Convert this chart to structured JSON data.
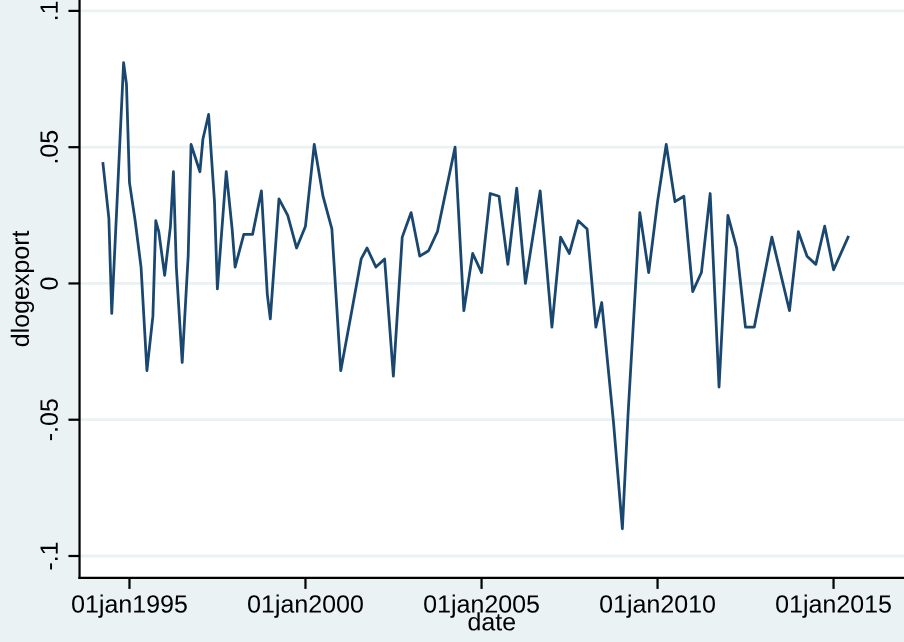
{
  "chart_data": {
    "type": "line",
    "xlabel": "date",
    "ylabel": "dlogexport",
    "x": [
      "1994-04",
      "1994-06",
      "1994-07",
      "1994-09",
      "1994-11",
      "1994-12",
      "1995-01",
      "1995-03",
      "1995-05",
      "1995-07",
      "1995-09",
      "1995-10",
      "1995-11",
      "1996-01",
      "1996-03",
      "1996-04",
      "1996-05",
      "1996-07",
      "1996-09",
      "1996-10",
      "1997-01",
      "1997-02",
      "1997-04",
      "1997-06",
      "1997-07",
      "1997-10",
      "1997-12",
      "1998-01",
      "1998-04",
      "1998-07",
      "1998-10",
      "1998-12",
      "1999-01",
      "1999-04",
      "1999-07",
      "1999-10",
      "2000-01",
      "2000-04",
      "2000-07",
      "2000-10",
      "2001-01",
      "2001-05",
      "2001-08",
      "2001-10",
      "2002-01",
      "2002-04",
      "2002-07",
      "2002-10",
      "2003-01",
      "2003-04",
      "2003-07",
      "2003-10",
      "2004-04",
      "2004-07",
      "2004-10",
      "2005-01",
      "2005-04",
      "2005-07",
      "2005-10",
      "2006-01",
      "2006-04",
      "2006-09",
      "2007-01",
      "2007-04",
      "2007-07",
      "2007-10",
      "2008-01",
      "2008-04",
      "2008-06",
      "2008-10",
      "2009-01",
      "2009-03",
      "2009-07",
      "2009-10",
      "2010-01",
      "2010-04",
      "2010-07",
      "2010-10",
      "2011-01",
      "2011-04",
      "2011-07",
      "2011-10",
      "2012-01",
      "2012-04",
      "2012-07",
      "2012-10",
      "2013-04",
      "2013-10",
      "2014-01",
      "2014-04",
      "2014-07",
      "2014-10",
      "2015-01",
      "2015-06"
    ],
    "series": [
      {
        "color": "#1a476f",
        "values": [
          0.044,
          0.024,
          -0.011,
          0.035,
          0.081,
          0.073,
          0.037,
          0.023,
          0.006,
          -0.032,
          -0.012,
          0.023,
          0.019,
          0.003,
          0.021,
          0.041,
          0.006,
          -0.029,
          0.01,
          0.051,
          0.041,
          0.053,
          0.062,
          0.03,
          -0.002,
          0.041,
          0.02,
          0.006,
          0.018,
          0.018,
          0.034,
          -0.004,
          -0.013,
          0.031,
          0.025,
          0.013,
          0.021,
          0.051,
          0.032,
          0.02,
          -0.032,
          -0.009,
          0.009,
          0.013,
          0.006,
          0.009,
          -0.034,
          0.017,
          0.026,
          0.01,
          0.012,
          0.019,
          0.05,
          -0.01,
          0.011,
          0.004,
          0.033,
          0.032,
          0.007,
          0.035,
          0.0,
          0.034,
          -0.016,
          0.017,
          0.011,
          0.023,
          0.02,
          -0.016,
          -0.007,
          -0.051,
          -0.09,
          -0.048,
          0.026,
          0.004,
          0.03,
          0.051,
          0.03,
          0.032,
          -0.003,
          0.004,
          0.033,
          -0.038,
          0.025,
          0.013,
          -0.016,
          -0.016,
          0.017,
          -0.01,
          0.019,
          0.01,
          0.007,
          0.021,
          0.005,
          0.017
        ]
      }
    ],
    "xlim": [
      "1993-08",
      "2017-01"
    ],
    "xticks": [
      {
        "value": "1995-01-01",
        "label": "01jan1995"
      },
      {
        "value": "2000-01-01",
        "label": "01jan2000"
      },
      {
        "value": "2005-01-01",
        "label": "01jan2005"
      },
      {
        "value": "2010-01-01",
        "label": "01jan2010"
      },
      {
        "value": "2015-01-01",
        "label": "01jan2015"
      }
    ],
    "ylim": [
      -0.108,
      0.104
    ],
    "yticks": [
      {
        "value": -0.1,
        "label": "-.1"
      },
      {
        "value": -0.05,
        "label": "-.05"
      },
      {
        "value": 0,
        "label": "0"
      },
      {
        "value": 0.05,
        "label": ".05"
      },
      {
        "value": 0.1,
        "label": ".1"
      }
    ],
    "grid": "y",
    "marker": "none",
    "line_style": "solid"
  }
}
